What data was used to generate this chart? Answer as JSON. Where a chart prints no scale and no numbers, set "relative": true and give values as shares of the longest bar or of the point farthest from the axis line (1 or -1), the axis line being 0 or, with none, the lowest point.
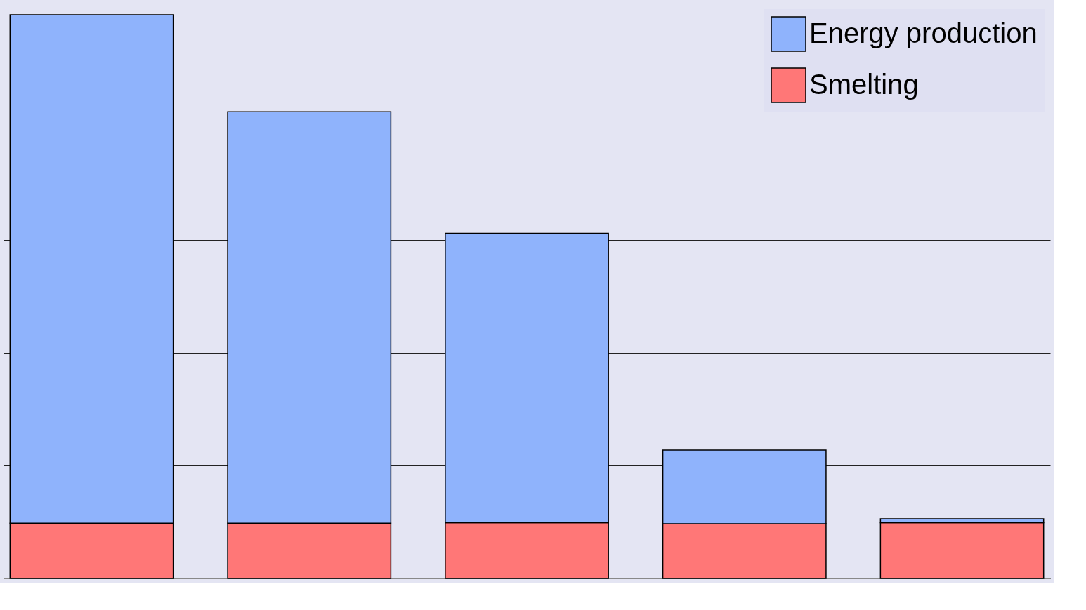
{
  "chart_data": {
    "type": "bar",
    "stacked": true,
    "relative": true,
    "grid": "y",
    "legend": "top right",
    "categories": [
      null,
      null,
      null,
      null,
      null
    ],
    "series": [
      {
        "name": "Smelting",
        "color": "#ff7777",
        "values": [
          0.098,
          0.098,
          0.099,
          0.097,
          0.099
        ]
      },
      {
        "name": "Energy production",
        "color": "#8fb3fc",
        "values": [
          0.902,
          0.73,
          0.513,
          0.131,
          0.007
        ]
      }
    ]
  }
}
